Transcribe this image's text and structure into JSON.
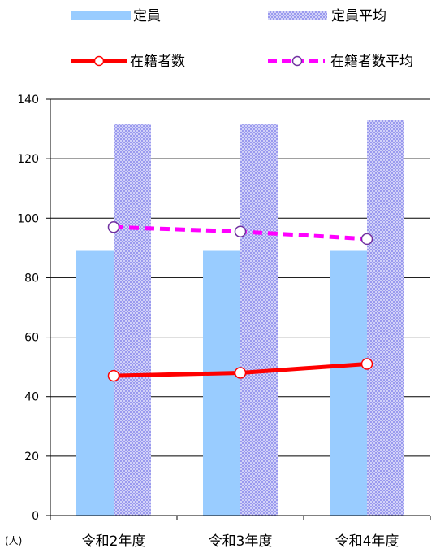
{
  "chart_data": {
    "type": "bar",
    "categories": [
      "令和2年度",
      "令和3年度",
      "令和4年度"
    ],
    "y_unit": "(人)",
    "ylim": [
      0,
      140
    ],
    "yticks": [
      0,
      20,
      40,
      60,
      80,
      100,
      120,
      140
    ],
    "grid": true,
    "legend_position": "top",
    "series": [
      {
        "name": "定員",
        "type": "bar",
        "values": [
          89,
          89,
          89
        ],
        "color": "#99ccff"
      },
      {
        "name": "定員平均",
        "type": "bar",
        "pattern": "dotted",
        "values": [
          131.5,
          131.5,
          133
        ],
        "color": "#9999ee"
      },
      {
        "name": "在籍者数",
        "type": "line",
        "values": [
          47,
          48,
          51
        ],
        "color": "#ff0000"
      },
      {
        "name": "在籍者数平均",
        "type": "line",
        "dashed": true,
        "values": [
          97,
          95.5,
          93
        ],
        "color": "#ff00ff"
      }
    ]
  }
}
